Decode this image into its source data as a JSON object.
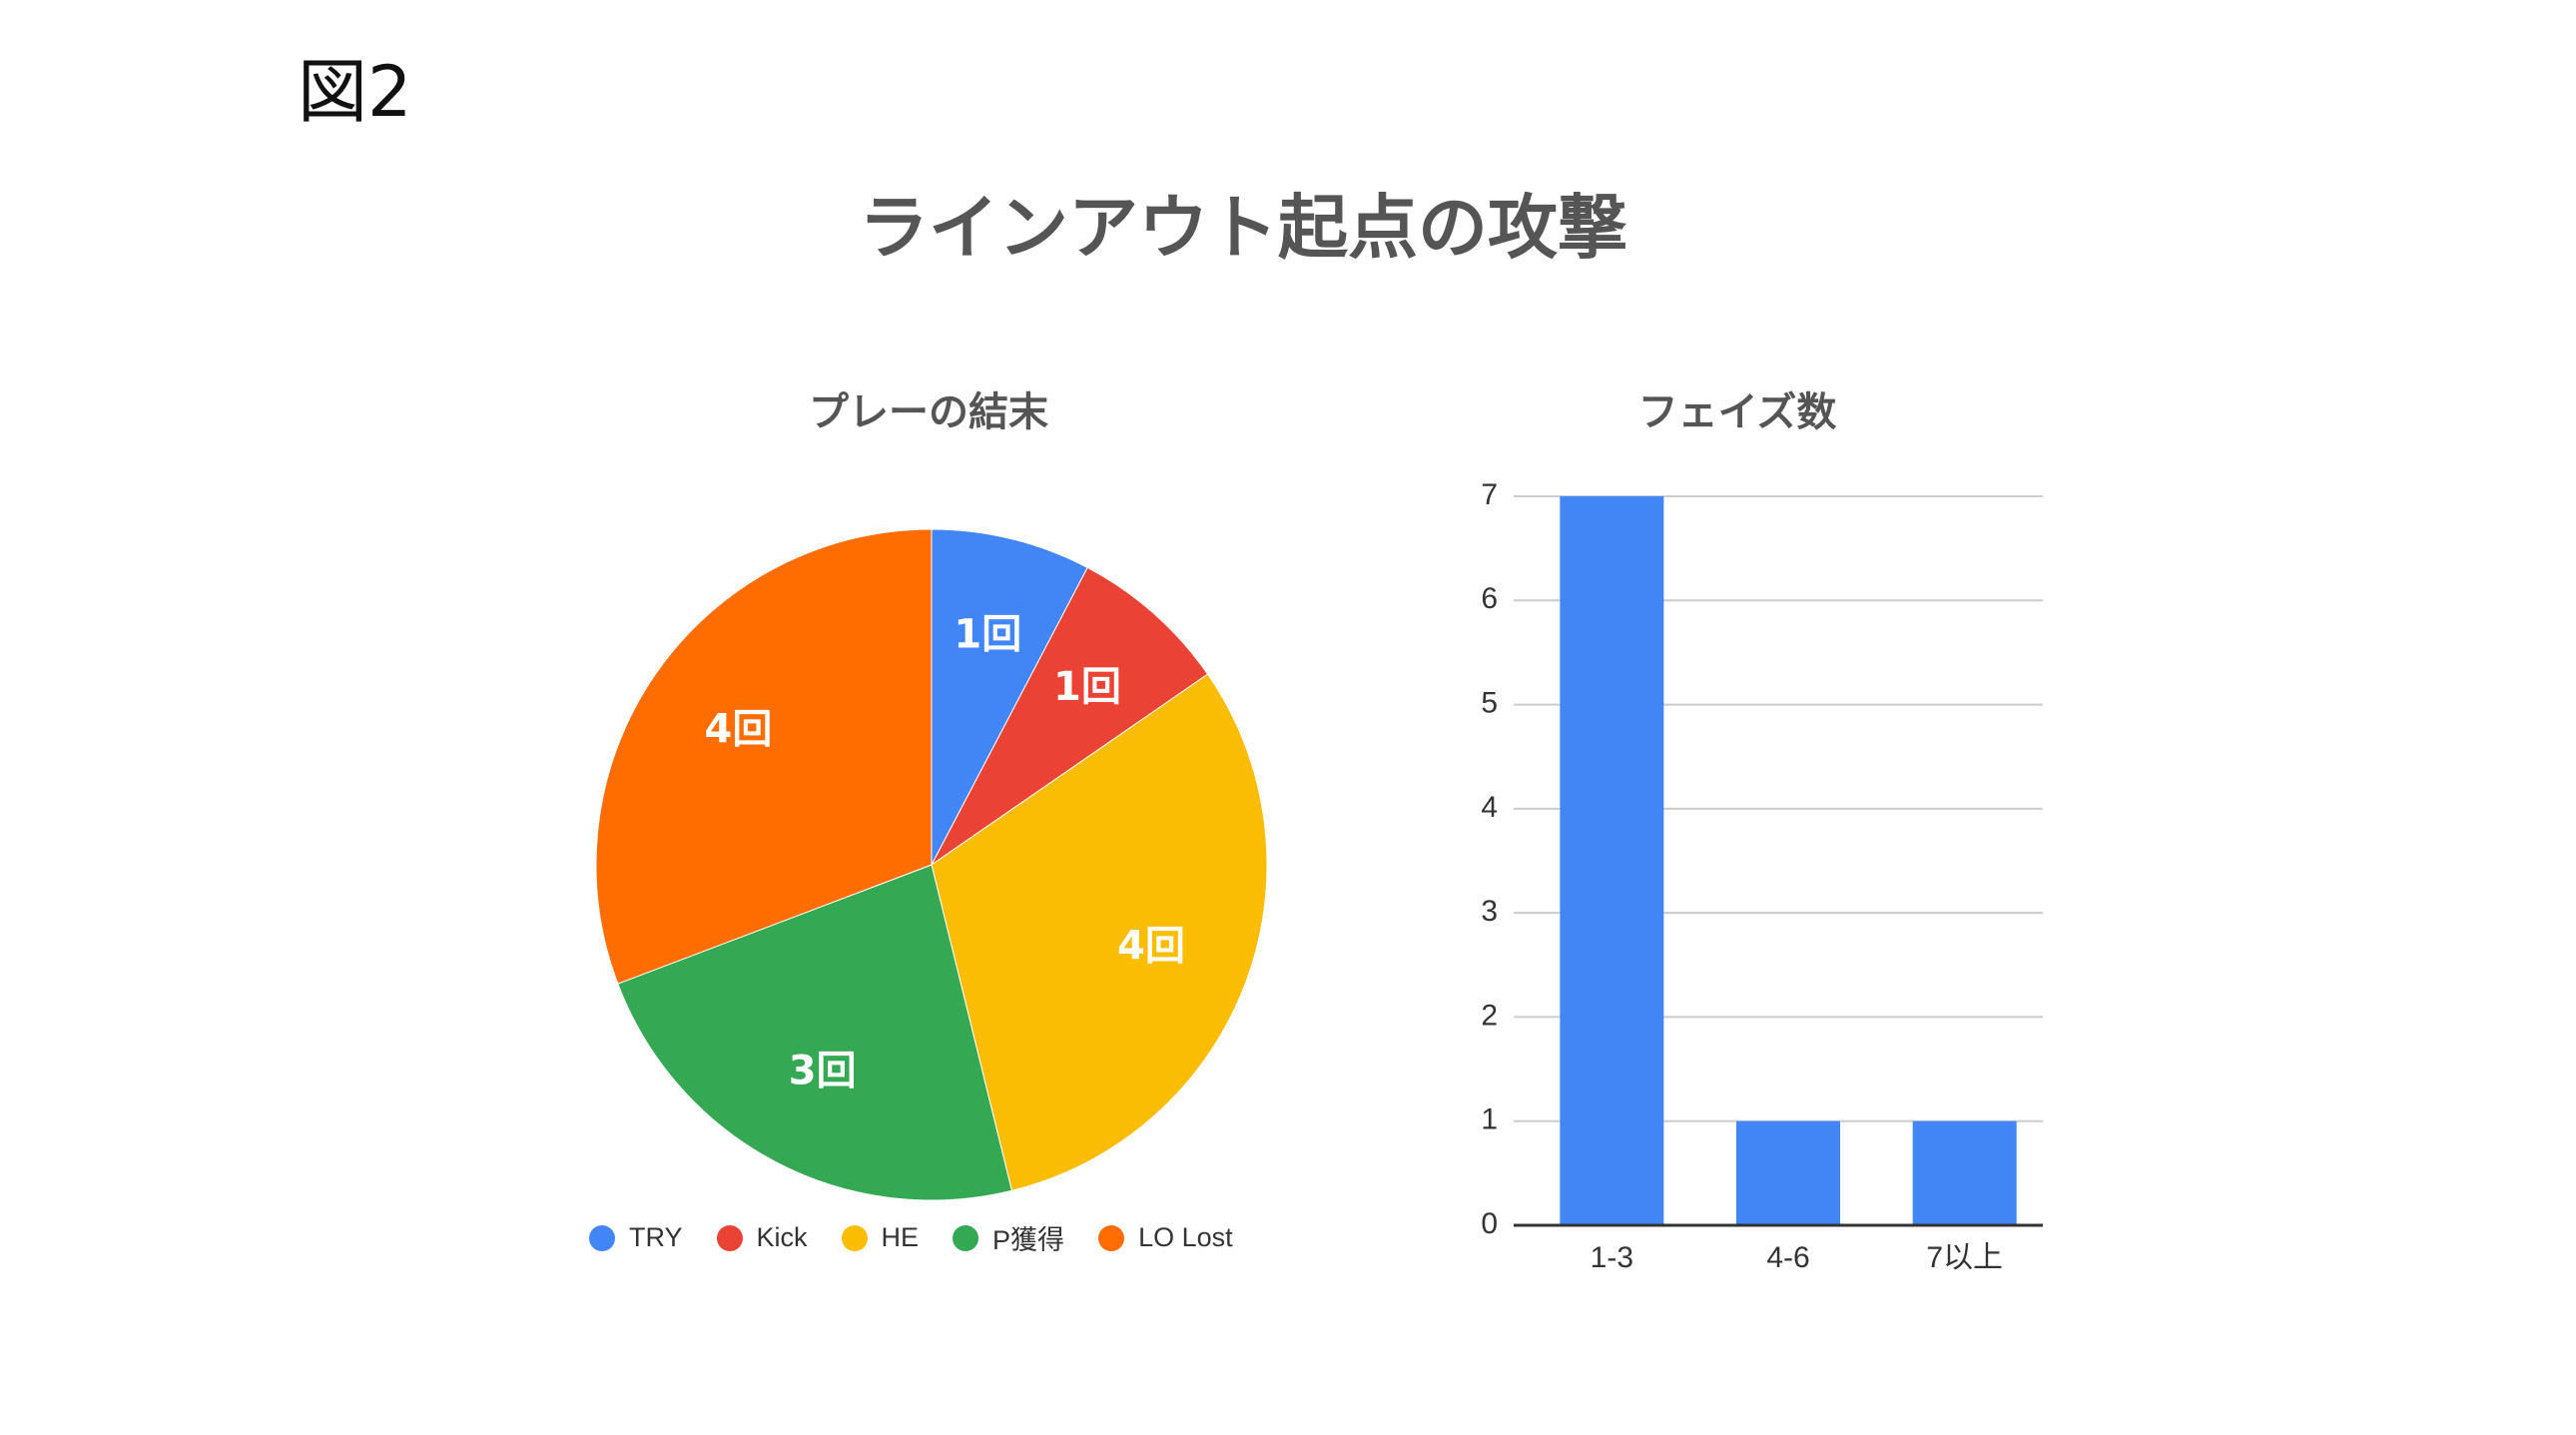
{
  "figure_label": "図2",
  "main_title": "ラインアウト起点の攻撃",
  "chart_data": [
    {
      "type": "pie",
      "title": "プレーの結末",
      "categories": [
        "TRY",
        "Kick",
        "HE",
        "P獲得",
        "LO Lost"
      ],
      "values": [
        1,
        1,
        4,
        3,
        4
      ],
      "slice_labels": [
        "1回",
        "1回",
        "4回",
        "3回",
        "4回"
      ],
      "colors": [
        "#4285F4",
        "#EA4335",
        "#FBBC04",
        "#34A853",
        "#FF6D01"
      ],
      "legend_position": "bottom"
    },
    {
      "type": "bar",
      "title": "フェイズ数",
      "categories": [
        "1-3",
        "4-6",
        "7以上"
      ],
      "values": [
        7,
        1,
        1
      ],
      "ylim": [
        0,
        7
      ],
      "yticks": [
        "0",
        "1",
        "2",
        "3",
        "4",
        "5",
        "6",
        "7"
      ],
      "grid": true,
      "color": "#4285F4"
    }
  ]
}
